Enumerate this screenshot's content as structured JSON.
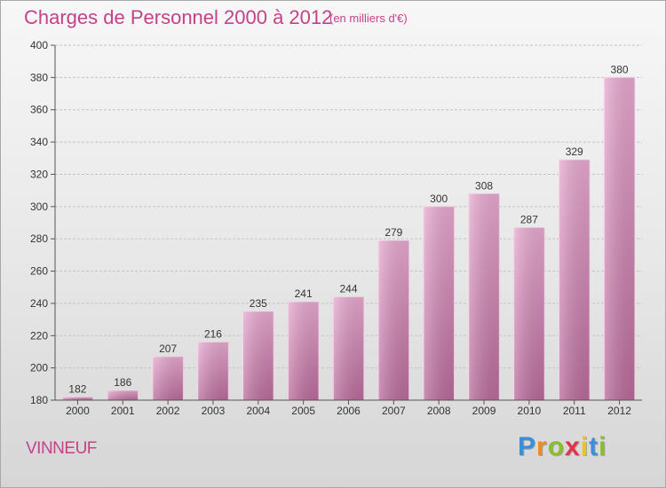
{
  "chart_data": {
    "type": "bar",
    "title": "Charges de Personnel 2000 à 2012",
    "subtitle": "(en milliers d'€)",
    "categories": [
      "2000",
      "2001",
      "2002",
      "2003",
      "2004",
      "2005",
      "2006",
      "2007",
      "2008",
      "2009",
      "2010",
      "2011",
      "2012"
    ],
    "values": [
      182,
      186,
      207,
      216,
      235,
      241,
      244,
      279,
      300,
      308,
      287,
      329,
      380
    ],
    "ylim": [
      180,
      400
    ],
    "yticks": [
      180,
      200,
      220,
      240,
      260,
      280,
      300,
      320,
      340,
      360,
      380,
      400
    ],
    "grid": true,
    "bar_color": "#d77fb3"
  },
  "location": "VINNEUF",
  "brand": {
    "letters": [
      "P",
      "r",
      "o",
      "x",
      "i",
      "t",
      "i"
    ],
    "colors": [
      "#3a8fd8",
      "#f08a1c",
      "#8bbf2a",
      "#e2334a",
      "#f2c31a",
      "#3a8fd8",
      "#8bbf2a"
    ]
  }
}
